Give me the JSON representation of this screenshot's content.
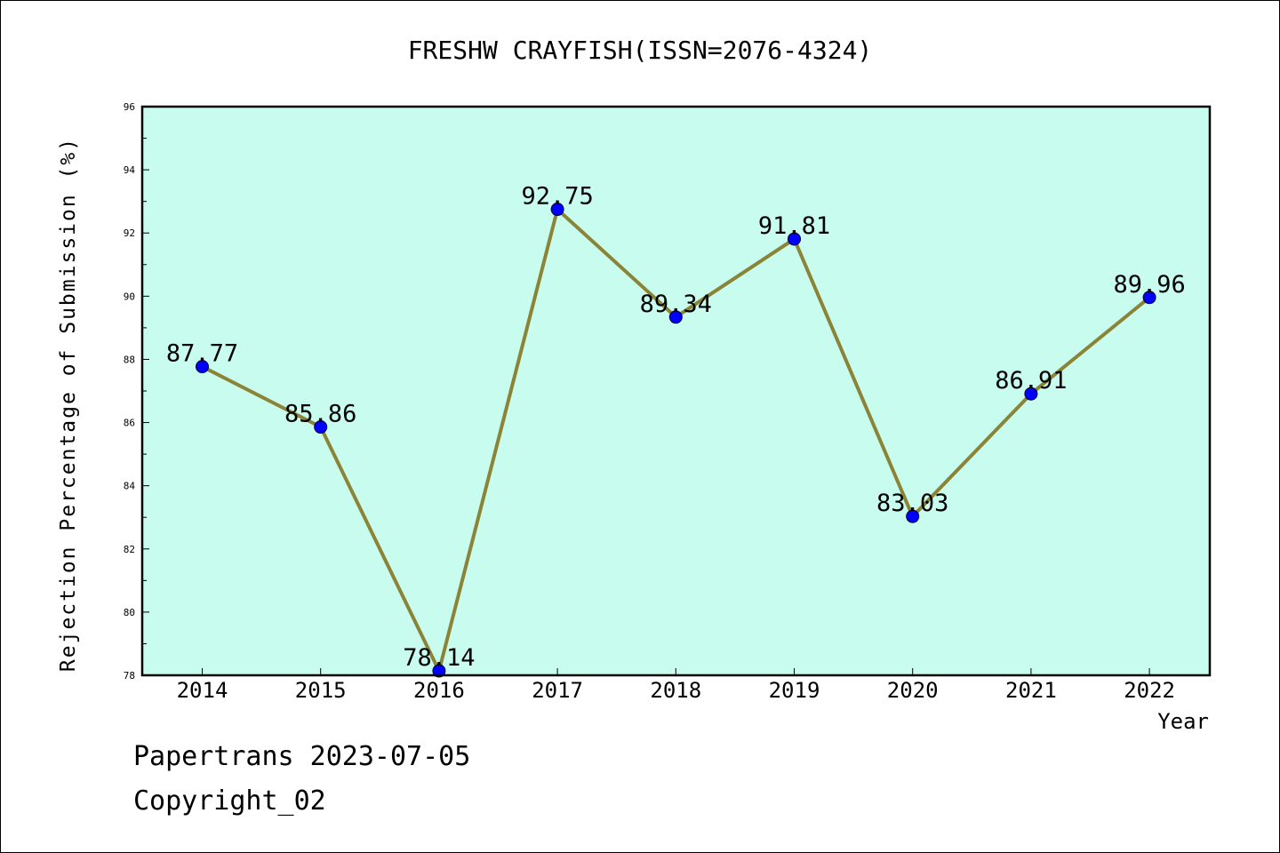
{
  "footer": {
    "line1": "Papertrans 2023-07-05",
    "line2": "Copyright_02"
  },
  "colors": {
    "plot_background": "#c8fcee",
    "line": "#8b8436",
    "marker": "#0000ff"
  },
  "chart_data": {
    "type": "line",
    "title": "FRESHW CRAYFISH(ISSN=2076-4324)",
    "xlabel": "Year",
    "ylabel": "Rejection Percentage of Submission (%)",
    "categories": [
      "2014",
      "2015",
      "2016",
      "2017",
      "2018",
      "2019",
      "2020",
      "2021",
      "2022"
    ],
    "series": [
      {
        "values": [
          87.77,
          85.86,
          78.14,
          92.75,
          89.34,
          91.81,
          83.03,
          86.91,
          89.96
        ],
        "labels": [
          "87.77",
          "85.86",
          "78.14",
          "92.75",
          "89.34",
          "91.81",
          "83.03",
          "86.91",
          "89.96"
        ]
      }
    ],
    "ylim": [
      78,
      96
    ],
    "yticks": [
      "78",
      "80",
      "82",
      "84",
      "86",
      "88",
      "90",
      "92",
      "94",
      "96"
    ],
    "grid": false,
    "legend": "none"
  }
}
